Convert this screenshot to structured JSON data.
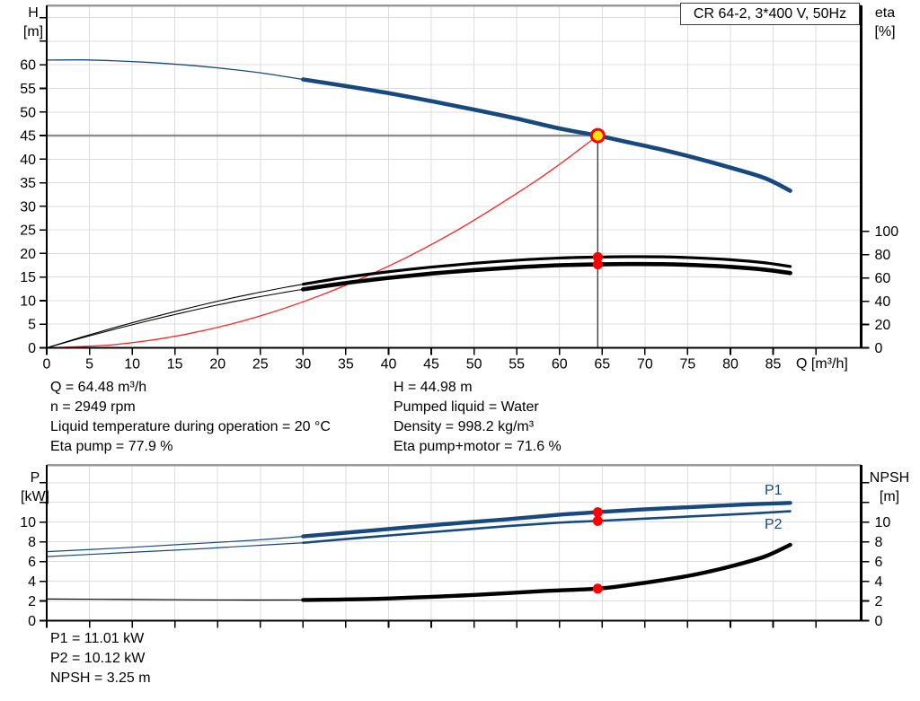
{
  "title_box": {
    "text": "CR 64-2, 3*400 V, 50Hz"
  },
  "unit_labels": {
    "h": [
      "H",
      "[m]"
    ],
    "eta": [
      "eta",
      "[%]"
    ],
    "q": "Q [m³/h]",
    "p": [
      "P",
      "[kW]"
    ],
    "npsh": [
      "NPSH",
      "[m]"
    ]
  },
  "curve_labels": {
    "p1": "P1",
    "p2": "P2"
  },
  "annotations": {
    "left": [
      "Q = 64.48 m³/h",
      "n = 2949 rpm",
      "Liquid temperature during operation = 20 °C",
      "Eta pump = 77.9 %"
    ],
    "right": [
      "H = 44.98 m",
      "Pumped liquid = Water",
      "Density = 998.2 kg/m³",
      "Eta pump+motor = 71.6 %"
    ],
    "bottom": [
      "P1 = 11.01 kW",
      "P2 = 10.12 kW",
      "NPSH = 3.25 m"
    ]
  },
  "colors": {
    "curve_blue": "#17497d",
    "curve_black": "#000000",
    "system_red": "#ff2020",
    "marker_red": "#ff0000",
    "marker_yellow": "#ffe600",
    "grid": "#dcdcdc",
    "frame_gray": "#9a9a9a",
    "duty_line_gray": "#8c8c8c",
    "duty_line_dark": "#3f3f3f"
  },
  "duty_point": {
    "Q": 64.48,
    "H": 44.98,
    "eta_pump": 77.9,
    "eta_pump_motor": 71.6,
    "P1": 11.01,
    "P2": 10.12,
    "NPSH": 3.25
  },
  "chart_data": [
    {
      "id": "top",
      "type": "line",
      "title": "CR 64-2, 3*400 V, 50Hz",
      "xlabel": "Q [m³/h]",
      "ylabel_left": "H [m]",
      "ylabel_right": "eta [%]",
      "legend": "none",
      "grid_on": true,
      "axes": {
        "x": {
          "domain": [
            0,
            95.3
          ],
          "ticks": [
            0,
            5,
            10,
            15,
            20,
            25,
            30,
            35,
            40,
            45,
            50,
            55,
            60,
            65,
            70,
            75,
            80,
            85
          ],
          "minor_ticks": [
            90
          ],
          "grid": [
            5,
            10,
            15,
            20,
            25,
            30,
            35,
            40,
            45,
            50,
            55,
            60,
            65,
            70,
            75,
            80,
            85,
            90
          ]
        },
        "left": {
          "domain": [
            0,
            72.6
          ],
          "ticks": [
            0,
            5,
            10,
            15,
            20,
            25,
            30,
            35,
            40,
            45,
            50,
            55,
            60
          ],
          "minor_ticks": [
            65,
            70
          ],
          "grid": [
            5,
            10,
            15,
            20,
            25,
            30,
            35,
            40,
            45,
            50,
            55,
            60,
            65,
            70
          ]
        },
        "right": {
          "domain": [
            0,
            294
          ],
          "ticks": [
            0,
            20,
            40,
            60,
            80,
            100
          ],
          "minor_ticks": []
        }
      },
      "guides": [
        {
          "name": "duty-head-line",
          "axis": "left",
          "color": "#8c8c8c",
          "width": 2.4,
          "points": [
            [
              0,
              44.98
            ],
            [
              64.48,
              44.98
            ]
          ]
        },
        {
          "name": "duty-flow-line",
          "axis": "left",
          "color": "#3f3f3f",
          "width": 1.4,
          "points": [
            [
              64.48,
              44.98
            ],
            [
              64.48,
              0
            ]
          ]
        }
      ],
      "series": [
        {
          "name": "system-curve",
          "axis": "left",
          "color": "#ff2020",
          "segments": [
            {
              "width": 1.3,
              "points": [
                [
                  0,
                  0
                ],
                [
                  8,
                  0.69
                ],
                [
                  16,
                  2.77
                ],
                [
                  24,
                  6.23
                ],
                [
                  32,
                  11.1
                ],
                [
                  40,
                  17.3
                ],
                [
                  48,
                  24.9
                ],
                [
                  56,
                  33.9
                ],
                [
                  60,
                  38.9
                ],
                [
                  64.48,
                  44.98
                ]
              ]
            }
          ]
        },
        {
          "name": "head-curve",
          "axis": "left",
          "color": "#17497d",
          "segments": [
            {
              "width": 1.3,
              "points": [
                [
                  0,
                  61
                ],
                [
                  4,
                  61.05
                ],
                [
                  8,
                  60.85
                ],
                [
                  12,
                  60.5
                ],
                [
                  16,
                  60.0
                ],
                [
                  20,
                  59.35
                ],
                [
                  25,
                  58.3
                ],
                [
                  30,
                  56.9
                ]
              ]
            },
            {
              "width": 4.6,
              "points": [
                [
                  30,
                  56.9
                ],
                [
                  35,
                  55.5
                ],
                [
                  40,
                  54.0
                ],
                [
                  45,
                  52.3
                ],
                [
                  50,
                  50.5
                ],
                [
                  55,
                  48.6
                ],
                [
                  60,
                  46.5
                ],
                [
                  64.48,
                  44.98
                ],
                [
                  68,
                  43.6
                ],
                [
                  72,
                  42.0
                ],
                [
                  76,
                  40.2
                ],
                [
                  80,
                  38.2
                ],
                [
                  84,
                  36.0
                ],
                [
                  87,
                  33.3
                ]
              ]
            }
          ]
        },
        {
          "name": "eta-pump-curve",
          "axis": "right",
          "color": "#000000",
          "segments": [
            {
              "width": 1.1,
              "points": [
                [
                  0,
                  0
                ],
                [
                  4,
                  9
                ],
                [
                  8,
                  17.5
                ],
                [
                  12,
                  25.5
                ],
                [
                  16,
                  33
                ],
                [
                  20,
                  40
                ],
                [
                  24,
                  46.3
                ],
                [
                  28,
                  52
                ],
                [
                  30,
                  54.6
                ]
              ]
            },
            {
              "width": 3.2,
              "points": [
                [
                  30,
                  54.6
                ],
                [
                  35,
                  60.5
                ],
                [
                  40,
                  65.3
                ],
                [
                  45,
                  69.3
                ],
                [
                  50,
                  72.6
                ],
                [
                  55,
                  75.2
                ],
                [
                  60,
                  77.1
                ],
                [
                  64.48,
                  77.9
                ],
                [
                  68,
                  78.2
                ],
                [
                  72,
                  78.1
                ],
                [
                  76,
                  77.2
                ],
                [
                  80,
                  75.6
                ],
                [
                  84,
                  73.0
                ],
                [
                  87,
                  69.8
                ]
              ]
            }
          ]
        },
        {
          "name": "eta-pump-motor-curve",
          "axis": "right",
          "color": "#000000",
          "segments": [
            {
              "width": 1.1,
              "points": [
                [
                  0,
                  0
                ],
                [
                  4,
                  8.3
                ],
                [
                  8,
                  16.1
                ],
                [
                  12,
                  23.4
                ],
                [
                  16,
                  30.3
                ],
                [
                  20,
                  36.8
                ],
                [
                  24,
                  42.6
                ],
                [
                  28,
                  47.8
                ],
                [
                  30,
                  50.2
                ]
              ]
            },
            {
              "width": 4.6,
              "points": [
                [
                  30,
                  50.2
                ],
                [
                  35,
                  55.6
                ],
                [
                  40,
                  60.0
                ],
                [
                  45,
                  63.7
                ],
                [
                  50,
                  66.7
                ],
                [
                  55,
                  69.1
                ],
                [
                  60,
                  70.9
                ],
                [
                  64.48,
                  71.6
                ],
                [
                  68,
                  71.9
                ],
                [
                  72,
                  71.8
                ],
                [
                  76,
                  71.0
                ],
                [
                  80,
                  69.5
                ],
                [
                  84,
                  67.1
                ],
                [
                  87,
                  64.2
                ]
              ]
            }
          ]
        }
      ],
      "markers": [
        {
          "name": "duty-point",
          "axis": "left",
          "q": 64.48,
          "v": 44.98,
          "r": 7,
          "fill": "#ffe600",
          "stroke": "#ff0000",
          "sw": 3
        },
        {
          "name": "duty-eta-pump",
          "axis": "right",
          "q": 64.48,
          "v": 77.9,
          "r": 5.5,
          "fill": "#ff0000"
        },
        {
          "name": "duty-eta-pump-motor",
          "axis": "right",
          "q": 64.48,
          "v": 71.6,
          "r": 5.5,
          "fill": "#ff0000"
        }
      ]
    },
    {
      "id": "bottom",
      "type": "line",
      "xlabel": "",
      "ylabel_left": "P [kW]",
      "ylabel_right": "NPSH [m]",
      "legend": "inline-labels",
      "grid_on": true,
      "axes": {
        "x": {
          "domain": [
            0,
            95.3
          ],
          "ticks": [],
          "minor_ticks": [
            0,
            5,
            10,
            15,
            20,
            25,
            30,
            35,
            40,
            45,
            50,
            55,
            60,
            65,
            70,
            75,
            80,
            85,
            90
          ],
          "grid": [
            5,
            10,
            15,
            20,
            25,
            30,
            35,
            40,
            45,
            50,
            55,
            60,
            65,
            70,
            75,
            80,
            85,
            90
          ]
        },
        "left": {
          "domain": [
            0,
            15.8
          ],
          "ticks": [
            0,
            2,
            4,
            6,
            8,
            10
          ],
          "minor_ticks": [
            12,
            14
          ],
          "grid": [
            2,
            4,
            6,
            8,
            10,
            12,
            14
          ]
        },
        "right": {
          "domain": [
            0,
            15.8
          ],
          "ticks": [
            0,
            2,
            4,
            6,
            8,
            10
          ],
          "minor_ticks": [
            12,
            14
          ]
        }
      },
      "guides": [],
      "series": [
        {
          "name": "p1-curve",
          "axis": "left",
          "color": "#17497d",
          "segments": [
            {
              "width": 1.2,
              "points": [
                [
                  0,
                  7.0
                ],
                [
                  8,
                  7.35
                ],
                [
                  16,
                  7.75
                ],
                [
                  24,
                  8.15
                ],
                [
                  30,
                  8.55
                ]
              ]
            },
            {
              "width": 4.4,
              "points": [
                [
                  30,
                  8.55
                ],
                [
                  38,
                  9.15
                ],
                [
                  46,
                  9.75
                ],
                [
                  54,
                  10.3
                ],
                [
                  60,
                  10.75
                ],
                [
                  64.48,
                  11.01
                ],
                [
                  70,
                  11.3
                ],
                [
                  76,
                  11.55
                ],
                [
                  82,
                  11.8
                ],
                [
                  87,
                  11.95
                ]
              ]
            }
          ]
        },
        {
          "name": "p2-curve",
          "axis": "left",
          "color": "#17497d",
          "segments": [
            {
              "width": 1.2,
              "points": [
                [
                  0,
                  6.5
                ],
                [
                  8,
                  6.85
                ],
                [
                  16,
                  7.2
                ],
                [
                  24,
                  7.6
                ],
                [
                  30,
                  7.9
                ]
              ]
            },
            {
              "width": 2.6,
              "points": [
                [
                  30,
                  7.9
                ],
                [
                  38,
                  8.5
                ],
                [
                  46,
                  9.05
                ],
                [
                  54,
                  9.6
                ],
                [
                  60,
                  9.95
                ],
                [
                  64.48,
                  10.12
                ],
                [
                  70,
                  10.35
                ],
                [
                  76,
                  10.6
                ],
                [
                  82,
                  10.85
                ],
                [
                  87,
                  11.1
                ]
              ]
            }
          ]
        },
        {
          "name": "npsh-curve",
          "axis": "right",
          "color": "#000000",
          "segments": [
            {
              "width": 1.2,
              "points": [
                [
                  0,
                  2.2
                ],
                [
                  10,
                  2.15
                ],
                [
                  20,
                  2.1
                ],
                [
                  30,
                  2.1
                ]
              ]
            },
            {
              "width": 4.4,
              "points": [
                [
                  30,
                  2.1
                ],
                [
                  38,
                  2.2
                ],
                [
                  46,
                  2.45
                ],
                [
                  52,
                  2.7
                ],
                [
                  58,
                  3.0
                ],
                [
                  64.48,
                  3.25
                ],
                [
                  68,
                  3.6
                ],
                [
                  72,
                  4.1
                ],
                [
                  76,
                  4.7
                ],
                [
                  80,
                  5.5
                ],
                [
                  84,
                  6.5
                ],
                [
                  87,
                  7.7
                ]
              ]
            }
          ]
        }
      ],
      "markers": [
        {
          "name": "duty-p1",
          "axis": "left",
          "q": 64.48,
          "v": 11.01,
          "r": 5.5,
          "fill": "#ff0000"
        },
        {
          "name": "duty-p2",
          "axis": "left",
          "q": 64.48,
          "v": 10.12,
          "r": 5.5,
          "fill": "#ff0000"
        },
        {
          "name": "duty-npsh",
          "axis": "right",
          "q": 64.48,
          "v": 3.25,
          "r": 5.5,
          "fill": "#ff0000"
        }
      ]
    }
  ]
}
